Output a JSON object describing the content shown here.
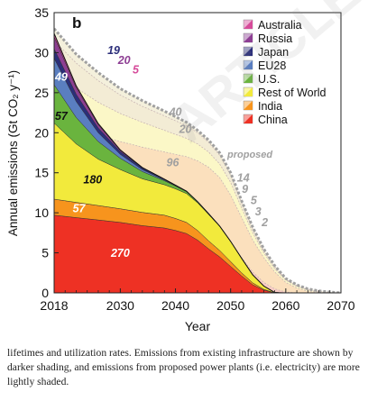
{
  "chart_data": {
    "type": "area",
    "panel_label": "b",
    "xlabel": "Year",
    "ylabel": "Annual emissions (Gt CO₂ y⁻¹)",
    "xlim": [
      2018,
      2070
    ],
    "ylim": [
      0,
      35
    ],
    "xticks": [
      2018,
      2030,
      2040,
      2050,
      2060,
      2070
    ],
    "yticks": [
      0,
      5,
      10,
      15,
      20,
      25,
      30,
      35
    ],
    "grid": false,
    "legend_position": "top-right",
    "x": [
      2018,
      2022,
      2026,
      2030,
      2034,
      2038,
      2040,
      2042,
      2044,
      2046,
      2048,
      2050,
      2052,
      2054,
      2056,
      2058,
      2060,
      2062,
      2064,
      2066,
      2068,
      2070
    ],
    "series": [
      {
        "name": "China",
        "color": "#ee3124",
        "values": [
          9.7,
          9.4,
          9.1,
          8.8,
          8.4,
          8.1,
          7.8,
          7.4,
          6.6,
          5.5,
          4.5,
          3.3,
          2.1,
          1.0,
          0.35,
          0,
          0,
          0,
          0,
          0,
          0,
          0
        ]
      },
      {
        "name": "India",
        "color": "#f7941d",
        "values": [
          2.0,
          1.9,
          1.8,
          1.7,
          1.65,
          1.6,
          1.5,
          1.4,
          1.2,
          1.0,
          0.8,
          0.6,
          0.4,
          0.25,
          0.1,
          0,
          0,
          0,
          0,
          0,
          0,
          0
        ]
      },
      {
        "name": "Rest of World",
        "color": "#f2ea3c",
        "values": [
          9.5,
          7.3,
          5.8,
          4.9,
          4.2,
          3.8,
          3.7,
          3.6,
          3.45,
          3.3,
          3.0,
          2.5,
          1.8,
          1.0,
          0.4,
          0.05,
          0,
          0,
          0,
          0,
          0,
          0
        ]
      },
      {
        "name": "U.S.",
        "color": "#6ab43e",
        "values": [
          4.8,
          3.3,
          2.2,
          1.4,
          0.9,
          0.5,
          0.35,
          0.25,
          0.15,
          0.1,
          0.05,
          0.03,
          0.01,
          0,
          0,
          0,
          0,
          0,
          0,
          0,
          0,
          0
        ]
      },
      {
        "name": "EU28",
        "color": "#5a7ec0",
        "values": [
          3.3,
          2.0,
          1.1,
          0.5,
          0.25,
          0.1,
          0.05,
          0.02,
          0,
          0,
          0,
          0,
          0,
          0,
          0,
          0,
          0,
          0,
          0,
          0,
          0,
          0
        ]
      },
      {
        "name": "Japan",
        "color": "#2b2e7a",
        "values": [
          1.2,
          0.9,
          0.6,
          0.35,
          0.2,
          0.1,
          0.05,
          0.02,
          0,
          0,
          0,
          0,
          0,
          0,
          0,
          0,
          0,
          0,
          0,
          0,
          0,
          0
        ]
      },
      {
        "name": "Russia",
        "color": "#8e3f94",
        "values": [
          1.5,
          0.8,
          0.4,
          0.15,
          0.05,
          0,
          0,
          0,
          0,
          0,
          0,
          0,
          0,
          0,
          0,
          0,
          0,
          0,
          0,
          0,
          0,
          0
        ]
      },
      {
        "name": "Australia",
        "color": "#d64b9a",
        "values": [
          0.4,
          0.25,
          0.15,
          0.05,
          0,
          0,
          0,
          0,
          0,
          0,
          0,
          0,
          0,
          0,
          0,
          0,
          0,
          0,
          0,
          0,
          0,
          0
        ]
      }
    ],
    "proposed": {
      "label": "proposed",
      "total": [
        33.0,
        29.8,
        27.5,
        25.5,
        24.0,
        22.7,
        22.0,
        21.3,
        20.3,
        19.1,
        17.5,
        15.0,
        11.5,
        8.2,
        5.5,
        3.4,
        1.8,
        1.0,
        0.5,
        0.25,
        0.1,
        0
      ],
      "boundaries": [
        [
          12.2,
          11.8,
          11.5,
          11.3,
          11.1,
          10.9,
          10.8,
          10.6,
          10.1,
          9.2,
          8.0,
          6.3,
          4.4,
          2.6,
          1.3,
          0.5,
          0.1,
          0,
          0,
          0,
          0,
          0
        ],
        [
          22.5,
          20.8,
          19.7,
          18.9,
          18.2,
          17.6,
          17.3,
          17.0,
          16.5,
          15.7,
          14.4,
          12.2,
          9.4,
          6.6,
          4.4,
          2.6,
          1.3,
          0.6,
          0.2,
          0.05,
          0,
          0
        ],
        [
          27.8,
          25.6,
          23.8,
          22.4,
          21.3,
          20.3,
          19.8,
          19.3,
          18.6,
          17.6,
          16.1,
          13.8,
          10.6,
          7.5,
          5.0,
          3.0,
          1.6,
          0.8,
          0.35,
          0.1,
          0,
          0
        ],
        [
          31.5,
          28.7,
          26.5,
          24.7,
          23.3,
          22.1,
          21.5,
          20.9,
          20.0,
          18.8,
          17.2,
          14.7,
          11.3,
          8.0,
          5.3,
          3.3,
          1.7,
          0.9,
          0.45,
          0.2,
          0.05,
          0
        ]
      ]
    },
    "data_labels": [
      {
        "text": "270",
        "x": 2030,
        "y": 4.5,
        "color": "#ffffff"
      },
      {
        "text": "57",
        "x": 2022.5,
        "y": 10.1,
        "color": "#ffffff"
      },
      {
        "text": "180",
        "x": 2025,
        "y": 13.7,
        "color": "#111111"
      },
      {
        "text": "57",
        "x": 2019.3,
        "y": 21.6,
        "color": "#111111"
      },
      {
        "text": "49",
        "x": 2019.3,
        "y": 26.5,
        "color": "#ffffff"
      },
      {
        "text": "19",
        "x": 2028.8,
        "y": 29.8,
        "color": "#2b2e7a"
      },
      {
        "text": "20",
        "x": 2030.7,
        "y": 28.6,
        "color": "#8e3f94"
      },
      {
        "text": "5",
        "x": 2032.8,
        "y": 27.4,
        "color": "#d64b9a"
      },
      {
        "text": "40",
        "x": 2040,
        "y": 22.1,
        "color": "#a0a0a0"
      },
      {
        "text": "20",
        "x": 2041.8,
        "y": 20.0,
        "color": "#a0a0a0"
      },
      {
        "text": "96",
        "x": 2039.5,
        "y": 15.8,
        "color": "#a0a0a0"
      },
      {
        "text": "14",
        "x": 2052.3,
        "y": 13.9,
        "color": "#a0a0a0"
      },
      {
        "text": "9",
        "x": 2052.6,
        "y": 12.5,
        "color": "#a0a0a0"
      },
      {
        "text": "5",
        "x": 2054.2,
        "y": 11.1,
        "color": "#a0a0a0"
      },
      {
        "text": "3",
        "x": 2055.0,
        "y": 9.7,
        "color": "#a0a0a0"
      },
      {
        "text": "2",
        "x": 2056.2,
        "y": 8.3,
        "color": "#a0a0a0"
      }
    ]
  },
  "caption": "lifetimes and utilization rates. Emissions from existing infrastructure are shown by darker shading, and emissions from proposed power plants (i.e. electricity) are more lightly shaded.",
  "watermark": "ARTICLE PREVIEW"
}
